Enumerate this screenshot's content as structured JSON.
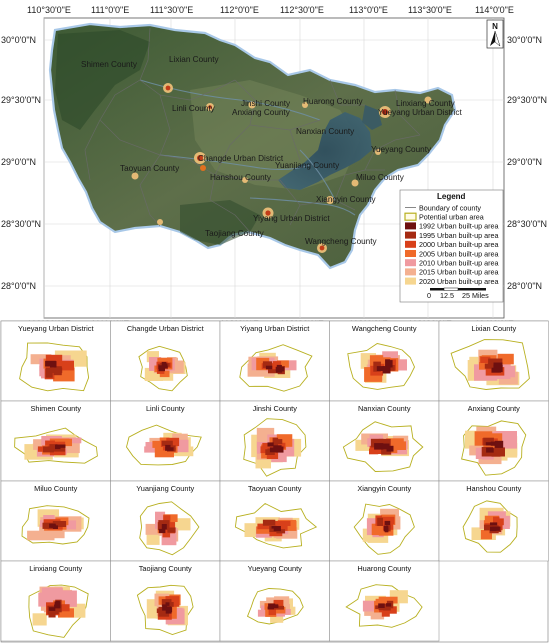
{
  "map": {
    "top_ticks": [
      "110°30'0\"E",
      "111°0'0\"E",
      "111°30'0\"E",
      "112°0'0\"E",
      "112°30'0\"E",
      "113°0'0\"E",
      "113°30'0\"E",
      "114°0'0\"E"
    ],
    "bottom_ticks": [
      "110°30'0\"E",
      "111°0'0\"E",
      "111°30'0\"E",
      "112°0'0\"E",
      "112°30'0\"E",
      "113°0'0\"E",
      "113°30'0\"E",
      "114°0'0\"E"
    ],
    "left_ticks": [
      "30°0'0\"N",
      "29°30'0\"N",
      "29°0'0\"N",
      "28°30'0\"N",
      "28°0'0\"N"
    ],
    "right_ticks": [
      "30°0'0\"N",
      "29°30'0\"N",
      "29°0'0\"N",
      "28°30'0\"N",
      "28°0'0\"N"
    ],
    "north_label": "N",
    "county_labels": [
      "Shimen County",
      "Lixian County",
      "Linli County",
      "Jinshi County",
      "Anxiang County",
      "Huarong County",
      "Linxiang County",
      "Yueyang Urban District",
      "Nanxian County",
      "Changde Urban District",
      "Hanshou County",
      "Taoyuan County",
      "Yuanjiang County",
      "Yueyang County",
      "Miluo County",
      "Xiangyin County",
      "Yiyang Urban District",
      "Taojiang County",
      "Wangcheng County"
    ]
  },
  "legend": {
    "title": "Legend",
    "items": [
      {
        "label": "Boundary of county",
        "kind": "line",
        "color": "#888888"
      },
      {
        "label": "Potential urban area",
        "kind": "outline",
        "color": "#b8b020"
      },
      {
        "label": "1992 Urban built-up area",
        "kind": "fill",
        "color": "#6e1010"
      },
      {
        "label": "1995 Urban built-up area",
        "kind": "fill",
        "color": "#a52a12"
      },
      {
        "label": "2000 Urban built-up area",
        "kind": "fill",
        "color": "#d8401a"
      },
      {
        "label": "2005 Urban built-up area",
        "kind": "fill",
        "color": "#f06a2a"
      },
      {
        "label": "2010 Urban built-up area",
        "kind": "fill",
        "color": "#f09aa0"
      },
      {
        "label": "2015 Urban built-up area",
        "kind": "fill",
        "color": "#f4b090"
      },
      {
        "label": "2020 Urban built-up area",
        "kind": "fill",
        "color": "#f6d690"
      }
    ],
    "scale_labels": [
      "0",
      "12.5",
      "25 Miles"
    ]
  },
  "panels": [
    "Yueyang Urban District",
    "Changde Urban District",
    "Yiyang Urban District",
    "Wangcheng County",
    "Lixian County",
    "Shimen County",
    "Linli County",
    "Jinshi County",
    "Nanxian County",
    "Anxiang County",
    "Miluo County",
    "Yuanjiang County",
    "Taoyuan County",
    "Xiangyin County",
    "Hanshou County",
    "Linxiang County",
    "Taojiang County",
    "Yueyang County",
    "Huarong County"
  ]
}
